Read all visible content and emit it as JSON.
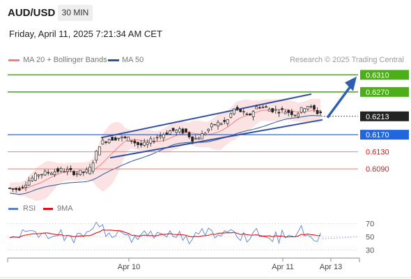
{
  "header": {
    "pair": "AUD/USD",
    "timeframe": "30 MIN",
    "datetime": "Friday, April 11, 2025 7:21:34 AM CET"
  },
  "legend": {
    "ma20": {
      "label": "MA 20 + Bollinger Bands",
      "color": "#f08080"
    },
    "ma50": {
      "label": "MA 50",
      "color": "#2f5597"
    },
    "source": "Research © 2025 Trading Central"
  },
  "rsi_legend": {
    "rsi": {
      "label": "RSI",
      "color": "#5b7fd6"
    },
    "ma9": {
      "label": "9MA",
      "color": "#e01010"
    }
  },
  "chart_data": {
    "type": "candlestick",
    "price_range": [
      0.6025,
      0.6335
    ],
    "x_labels": [
      "Apr 10",
      "Apr 11",
      "Apr 13"
    ],
    "current_price": "0.6213",
    "levels": [
      {
        "value": 0.631,
        "label": "0.6310",
        "kind": "resistance"
      },
      {
        "value": 0.627,
        "label": "0.6270",
        "kind": "resistance"
      },
      {
        "value": 0.617,
        "label": "0.6170",
        "kind": "pivot"
      },
      {
        "value": 0.613,
        "label": "0.6130",
        "kind": "support"
      },
      {
        "value": 0.609,
        "label": "0.6090",
        "kind": "support"
      }
    ],
    "rsi_levels": [
      "70",
      "50",
      "30"
    ],
    "rsi_range": [
      20,
      80
    ]
  }
}
